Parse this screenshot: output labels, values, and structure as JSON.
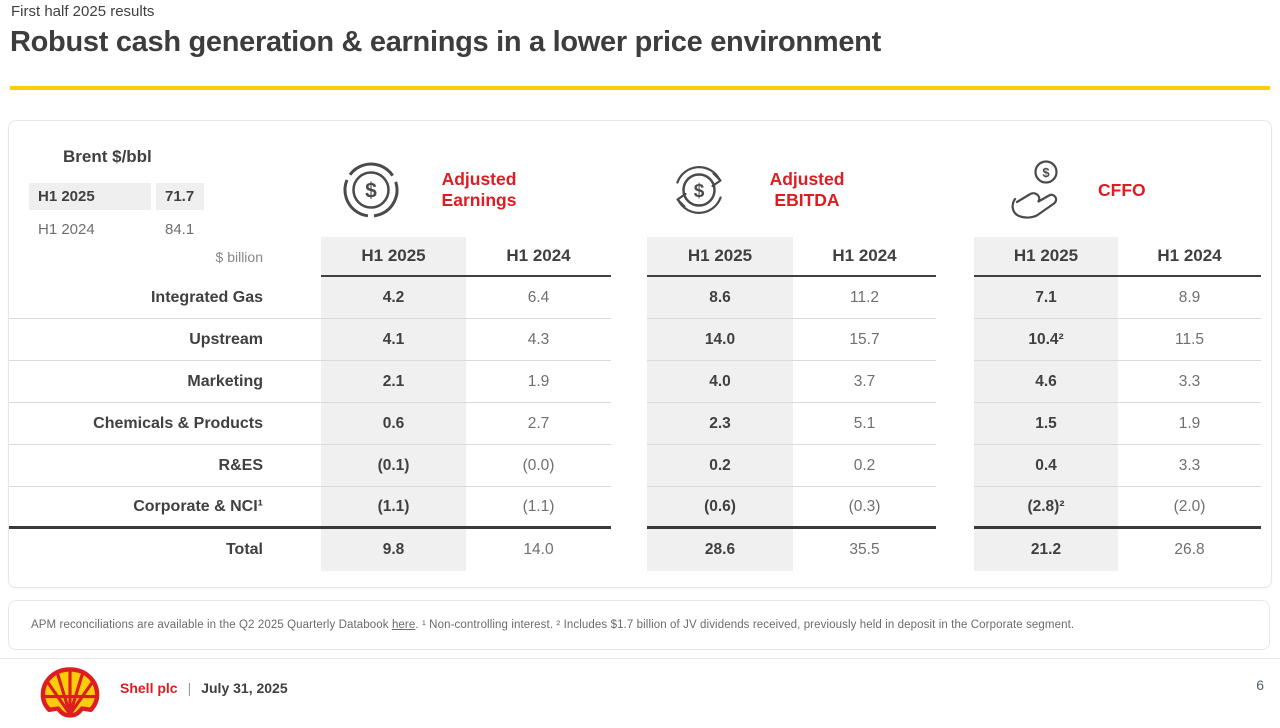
{
  "slide": {
    "eyebrow": "First half 2025 results",
    "title": "Robust cash generation & earnings in a lower price environment"
  },
  "brent": {
    "title": "Brent $/bbl",
    "rows": [
      {
        "label": "H1 2025",
        "value": "71.7"
      },
      {
        "label": "H1 2024",
        "value": "84.1"
      }
    ]
  },
  "table": {
    "unit_label": "$ billion",
    "sections": [
      {
        "name": "Adjusted Earnings",
        "icon": "donut-dollar-icon",
        "col_headers": [
          "H1 2025",
          "H1 2024"
        ]
      },
      {
        "name": "Adjusted EBITDA",
        "icon": "cycle-dollar-icon",
        "col_headers": [
          "H1 2025",
          "H1 2024"
        ]
      },
      {
        "name": "CFFO",
        "icon": "hand-dollar-icon",
        "col_headers": [
          "H1 2025",
          "H1 2024"
        ]
      }
    ],
    "rows": [
      {
        "label": "Integrated Gas",
        "values": [
          "4.2",
          "6.4",
          "8.6",
          "11.2",
          "7.1",
          "8.9"
        ]
      },
      {
        "label": "Upstream",
        "values": [
          "4.1",
          "4.3",
          "14.0",
          "15.7",
          "10.4²",
          "11.5"
        ]
      },
      {
        "label": "Marketing",
        "values": [
          "2.1",
          "1.9",
          "4.0",
          "3.7",
          "4.6",
          "3.3"
        ]
      },
      {
        "label": "Chemicals & Products",
        "values": [
          "0.6",
          "2.7",
          "2.3",
          "5.1",
          "1.5",
          "1.9"
        ]
      },
      {
        "label": "R&ES",
        "values": [
          "(0.1)",
          "(0.0)",
          "0.2",
          "0.2",
          "0.4",
          "3.3"
        ]
      },
      {
        "label": "Corporate & NCI¹",
        "rule_below": true,
        "values": [
          "(1.1)",
          "(1.1)",
          "(0.6)",
          "(0.3)",
          "(2.8)²",
          "(2.0)"
        ]
      },
      {
        "label": "Total",
        "total": true,
        "values": [
          "9.8",
          "14.0",
          "28.6",
          "35.5",
          "21.2",
          "26.8"
        ]
      }
    ]
  },
  "footnote": {
    "prefix": "APM reconciliations are available in the Q2 2025 Quarterly Databook ",
    "link_text": "here",
    "suffix": ". ¹ Non-controlling interest. ² Includes $1.7 billion of JV dividends received, previously held in deposit in the Corporate segment."
  },
  "footer": {
    "company": "Shell plc",
    "separator": "|",
    "date": "July 31, 2025",
    "page_number": "6"
  },
  "colors": {
    "shell_red": "#DD1D21",
    "shell_yellow": "#FBCE07",
    "text_dark": "#404040",
    "text_gray": "#6F6F6F",
    "shade_bg": "#F0F0F0"
  }
}
